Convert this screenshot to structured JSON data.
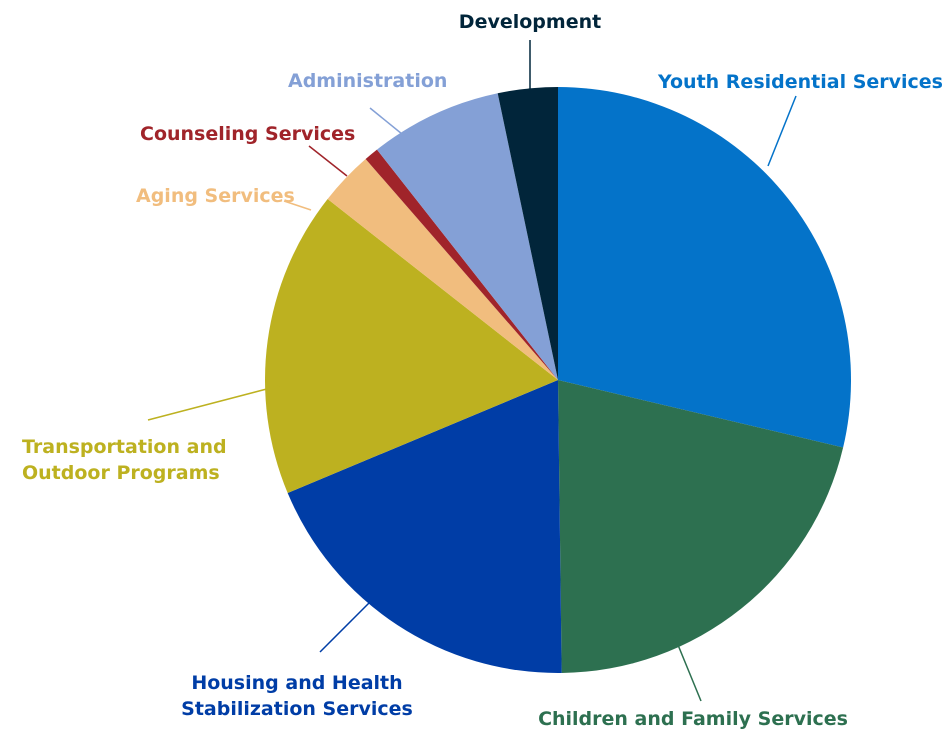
{
  "chart_data": {
    "type": "pie",
    "title": "",
    "slices": [
      {
        "label": "Youth Residential Services",
        "label_lines": [
          "Youth Residential Services"
        ],
        "value": 28.7,
        "color": "#0473C9",
        "label_color": "#0473C9"
      },
      {
        "label": "Children and Family Services",
        "label_lines": [
          "Children and Family Services"
        ],
        "value": 21.1,
        "color": "#2D7050",
        "label_color": "#2D7050"
      },
      {
        "label": "Housing and Health Stabilization Services",
        "label_lines": [
          "Housing and Health",
          "Stabilization Services"
        ],
        "value": 18.9,
        "color": "#003DA6",
        "label_color": "#003DA6"
      },
      {
        "label": "Transportation and Outdoor Programs",
        "label_lines": [
          "Transportation and",
          "Outdoor Programs"
        ],
        "value": 16.9,
        "color": "#BDB120",
        "label_color": "#BDB120"
      },
      {
        "label": "Aging Services",
        "label_lines": [
          "Aging Services"
        ],
        "value": 3.0,
        "color": "#F1BD7E",
        "label_color": "#F1BD7E"
      },
      {
        "label": "Counseling Services",
        "label_lines": [
          "Counseling Services"
        ],
        "value": 0.8,
        "color": "#A0242A",
        "label_color": "#A0242A"
      },
      {
        "label": "Administration",
        "label_lines": [
          "Administration"
        ],
        "value": 7.3,
        "color": "#84A0D6",
        "label_color": "#84A0D6"
      },
      {
        "label": "Development",
        "label_lines": [
          "Development"
        ],
        "value": 3.3,
        "color": "#01253A",
        "label_color": "#01253A"
      }
    ],
    "legend": "none",
    "label_style": "outside with leader lines"
  }
}
